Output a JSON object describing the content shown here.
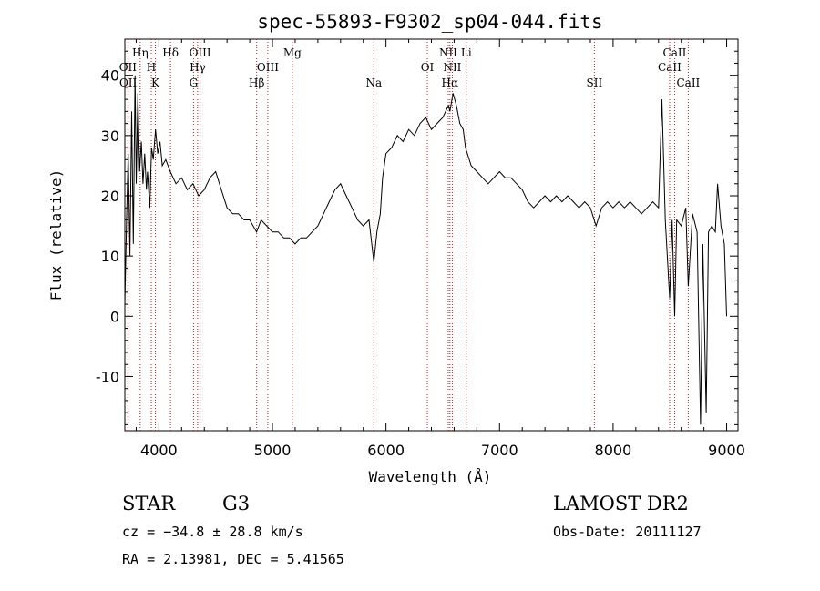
{
  "chart_data": {
    "type": "line",
    "title": "spec-55893-F9302_sp04-044.fits",
    "xlabel": "Wavelength (Å)",
    "ylabel": "Flux (relative)",
    "xlim": [
      3700,
      9100
    ],
    "ylim": [
      -19,
      46
    ],
    "xticks": [
      4000,
      5000,
      6000,
      7000,
      8000,
      9000
    ],
    "yticks": [
      -10,
      0,
      10,
      20,
      30,
      40
    ],
    "series": [
      {
        "points": [
          [
            3700,
            2
          ],
          [
            3715,
            16
          ],
          [
            3730,
            27
          ],
          [
            3745,
            10
          ],
          [
            3760,
            34
          ],
          [
            3775,
            12
          ],
          [
            3790,
            40
          ],
          [
            3800,
            22
          ],
          [
            3815,
            37
          ],
          [
            3830,
            24
          ],
          [
            3845,
            29
          ],
          [
            3860,
            22
          ],
          [
            3875,
            27
          ],
          [
            3890,
            21
          ],
          [
            3900,
            24
          ],
          [
            3920,
            18
          ],
          [
            3935,
            28
          ],
          [
            3950,
            26
          ],
          [
            3970,
            31
          ],
          [
            3990,
            27
          ],
          [
            4010,
            29
          ],
          [
            4030,
            25
          ],
          [
            4060,
            26
          ],
          [
            4100,
            24
          ],
          [
            4150,
            22
          ],
          [
            4200,
            23
          ],
          [
            4250,
            21
          ],
          [
            4300,
            22
          ],
          [
            4350,
            20
          ],
          [
            4400,
            21
          ],
          [
            4450,
            23
          ],
          [
            4500,
            24
          ],
          [
            4550,
            21
          ],
          [
            4600,
            18
          ],
          [
            4650,
            17
          ],
          [
            4700,
            17
          ],
          [
            4750,
            16
          ],
          [
            4800,
            16
          ],
          [
            4860,
            14
          ],
          [
            4900,
            16
          ],
          [
            4950,
            15
          ],
          [
            5000,
            14
          ],
          [
            5050,
            14
          ],
          [
            5100,
            13
          ],
          [
            5150,
            13
          ],
          [
            5200,
            12
          ],
          [
            5250,
            13
          ],
          [
            5300,
            13
          ],
          [
            5350,
            14
          ],
          [
            5400,
            15
          ],
          [
            5450,
            17
          ],
          [
            5500,
            19
          ],
          [
            5550,
            21
          ],
          [
            5600,
            22
          ],
          [
            5650,
            20
          ],
          [
            5700,
            18
          ],
          [
            5750,
            16
          ],
          [
            5800,
            15
          ],
          [
            5850,
            16
          ],
          [
            5893,
            9
          ],
          [
            5920,
            14
          ],
          [
            5950,
            17
          ],
          [
            5970,
            23
          ],
          [
            6000,
            27
          ],
          [
            6050,
            28
          ],
          [
            6100,
            30
          ],
          [
            6150,
            29
          ],
          [
            6200,
            31
          ],
          [
            6250,
            30
          ],
          [
            6300,
            32
          ],
          [
            6350,
            33
          ],
          [
            6400,
            31
          ],
          [
            6450,
            32
          ],
          [
            6500,
            33
          ],
          [
            6550,
            35
          ],
          [
            6563,
            34
          ],
          [
            6590,
            37
          ],
          [
            6620,
            35
          ],
          [
            6650,
            32
          ],
          [
            6680,
            31
          ],
          [
            6700,
            28
          ],
          [
            6750,
            25
          ],
          [
            6800,
            24
          ],
          [
            6850,
            23
          ],
          [
            6900,
            22
          ],
          [
            6950,
            23
          ],
          [
            7000,
            24
          ],
          [
            7050,
            23
          ],
          [
            7100,
            23
          ],
          [
            7150,
            22
          ],
          [
            7200,
            21
          ],
          [
            7250,
            19
          ],
          [
            7300,
            18
          ],
          [
            7350,
            19
          ],
          [
            7400,
            20
          ],
          [
            7450,
            19
          ],
          [
            7500,
            20
          ],
          [
            7550,
            19
          ],
          [
            7600,
            20
          ],
          [
            7650,
            19
          ],
          [
            7700,
            18
          ],
          [
            7750,
            19
          ],
          [
            7800,
            18
          ],
          [
            7850,
            15
          ],
          [
            7900,
            18
          ],
          [
            7950,
            19
          ],
          [
            8000,
            18
          ],
          [
            8050,
            19
          ],
          [
            8100,
            18
          ],
          [
            8150,
            19
          ],
          [
            8200,
            18
          ],
          [
            8250,
            17
          ],
          [
            8300,
            18
          ],
          [
            8350,
            19
          ],
          [
            8400,
            18
          ],
          [
            8430,
            36
          ],
          [
            8460,
            16
          ],
          [
            8498,
            3
          ],
          [
            8520,
            16
          ],
          [
            8542,
            0
          ],
          [
            8560,
            16
          ],
          [
            8600,
            15
          ],
          [
            8640,
            18
          ],
          [
            8662,
            5
          ],
          [
            8700,
            17
          ],
          [
            8740,
            14
          ],
          [
            8770,
            -18
          ],
          [
            8790,
            12
          ],
          [
            8820,
            -16
          ],
          [
            8840,
            14
          ],
          [
            8870,
            15
          ],
          [
            8900,
            14
          ],
          [
            8920,
            22
          ],
          [
            8950,
            15
          ],
          [
            8980,
            12
          ],
          [
            9000,
            0
          ]
        ]
      }
    ],
    "lines": [
      {
        "label": "OII",
        "x": 3727,
        "row": 1
      },
      {
        "label": "OII",
        "x": 3729,
        "row": 2
      },
      {
        "label": "Hη",
        "x": 3835,
        "row": 0
      },
      {
        "label": "H",
        "x": 3933,
        "row": 1
      },
      {
        "label": "K",
        "x": 3969,
        "row": 2
      },
      {
        "label": "Hδ",
        "x": 4102,
        "row": 0
      },
      {
        "label": "OIII",
        "x": 4363,
        "row": 0
      },
      {
        "label": "Hγ",
        "x": 4341,
        "row": 1
      },
      {
        "label": "G",
        "x": 4305,
        "row": 2
      },
      {
        "label": "OIII",
        "x": 4959,
        "row": 1
      },
      {
        "label": "Hβ",
        "x": 4861,
        "row": 2
      },
      {
        "label": "Mg",
        "x": 5175,
        "row": 0
      },
      {
        "label": "Na",
        "x": 5893,
        "row": 2
      },
      {
        "label": "OI",
        "x": 6364,
        "row": 1
      },
      {
        "label": "NII",
        "x": 6548,
        "row": 0
      },
      {
        "label": "Li",
        "x": 6707,
        "row": 0
      },
      {
        "label": "NII",
        "x": 6584,
        "row": 1
      },
      {
        "label": "Hα",
        "x": 6563,
        "row": 2
      },
      {
        "label": "SII",
        "x": 7835,
        "row": 2
      },
      {
        "label": "CaII",
        "x": 8542,
        "row": 0
      },
      {
        "label": "CaII",
        "x": 8498,
        "row": 1
      },
      {
        "label": "CaII",
        "x": 8662,
        "row": 2
      }
    ]
  },
  "info": {
    "class_type": "STAR",
    "subclass": "G3",
    "survey": "LAMOST DR2",
    "cz": "cz = −34.8 ± 28.8 km/s",
    "obs_date": "Obs-Date: 20111127",
    "radec": "RA =   2.13981, DEC =   5.41565"
  },
  "colors": {
    "spectrum": "#000000",
    "line_marker": "#b22222"
  }
}
